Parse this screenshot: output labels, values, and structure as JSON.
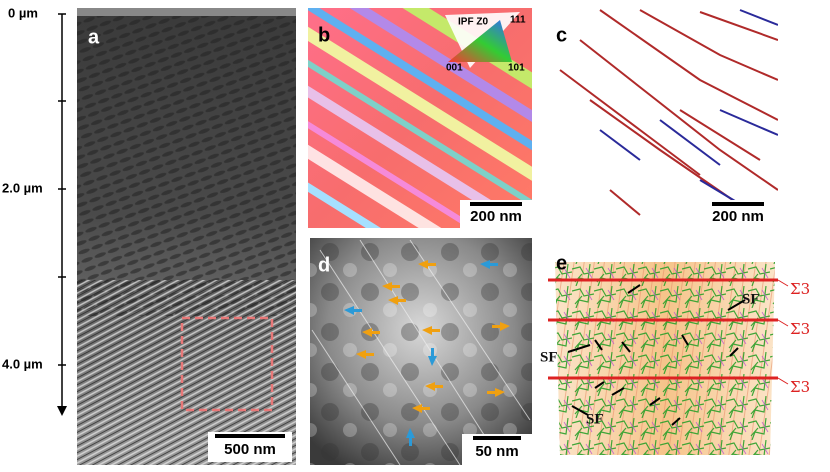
{
  "depth_axis": {
    "ticks": [
      "0 µm",
      "2.0 µm",
      "4.0 µm"
    ]
  },
  "panels": [
    {
      "label": "a",
      "scale_bar": "500 nm"
    },
    {
      "label": "b",
      "scale_bar": "200 nm",
      "legend": {
        "title": "IPF Z0",
        "corners": [
          "111",
          "001",
          "101"
        ]
      }
    },
    {
      "label": "c",
      "scale_bar": "200 nm"
    },
    {
      "label": "d",
      "scale_bar": "50 nm"
    },
    {
      "label": "e",
      "annotations": [
        "SF",
        "SF",
        "SF",
        "Σ3",
        "Σ3",
        "Σ3"
      ]
    }
  ]
}
